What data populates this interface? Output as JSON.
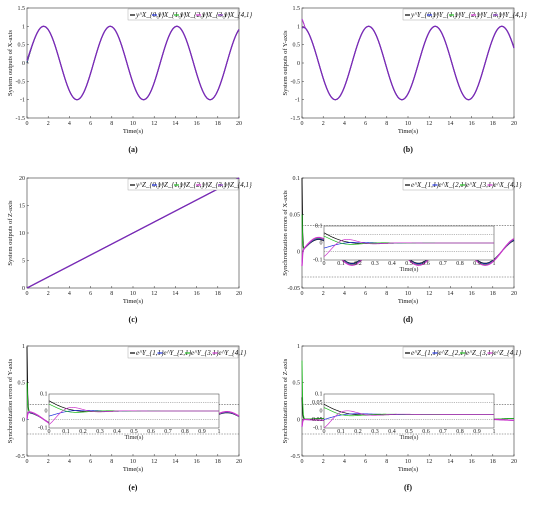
{
  "chart_data": [
    {
      "panel": "a",
      "caption": "(a)",
      "type": "line",
      "xlabel": "Time(s)",
      "ylabel": "System outputs of X-axis",
      "xlim": [
        0,
        20
      ],
      "ylim": [
        -1.5,
        1.5
      ],
      "xticks": [
        0,
        2,
        4,
        6,
        8,
        10,
        12,
        14,
        16,
        18,
        20
      ],
      "yticks": [
        -1.5,
        -1,
        -0.5,
        0,
        0.5,
        1,
        1.5
      ],
      "legend": [
        "y^X_{0,1}",
        "y^X_{1,1}",
        "y^X_{2,1}",
        "y^X_{3,1}",
        "y^X_{4,1}"
      ],
      "legend_position": "top-right",
      "series_colors": [
        "#000000",
        "#2233dd",
        "#22bb22",
        "#cc33cc",
        "#7a2ab8"
      ],
      "curve": {
        "kind": "sin",
        "amp": 1,
        "omega": 1,
        "phase": 0
      }
    },
    {
      "panel": "b",
      "caption": "(b)",
      "type": "line",
      "xlabel": "Time(s)",
      "ylabel": "System outputs of Y-axis",
      "xlim": [
        0,
        20
      ],
      "ylim": [
        -1.5,
        1.5
      ],
      "xticks": [
        0,
        2,
        4,
        6,
        8,
        10,
        12,
        14,
        16,
        18,
        20
      ],
      "yticks": [
        -1.5,
        -1,
        -0.5,
        0,
        0.5,
        1,
        1.5
      ],
      "legend": [
        "y^Y_{0,1}",
        "y^Y_{1,1}",
        "y^Y_{2,1}",
        "y^Y_{3,1}",
        "y^Y_{4,1}"
      ],
      "legend_position": "top-right",
      "series_colors": [
        "#000000",
        "#2233dd",
        "#22bb22",
        "#cc33cc",
        "#7a2ab8"
      ],
      "curve": {
        "kind": "cos",
        "amp": 1,
        "omega": 1,
        "phase": 0
      }
    },
    {
      "panel": "c",
      "caption": "(c)",
      "type": "line",
      "xlabel": "Time(s)",
      "ylabel": "System outputs of Z-axis",
      "xlim": [
        0,
        20
      ],
      "ylim": [
        0,
        20
      ],
      "xticks": [
        0,
        2,
        4,
        6,
        8,
        10,
        12,
        14,
        16,
        18,
        20
      ],
      "yticks": [
        0,
        5,
        10,
        15,
        20
      ],
      "legend": [
        "y^Z_{0,1}",
        "y^Z_{1,1}",
        "y^Z_{2,1}",
        "y^Z_{3,1}",
        "y^Z_{4,1}"
      ],
      "legend_position": "top-right",
      "series_colors": [
        "#000000",
        "#2233dd",
        "#22bb22",
        "#cc33cc",
        "#7a2ab8"
      ],
      "curve": {
        "kind": "linear",
        "slope": 1
      }
    },
    {
      "panel": "d",
      "caption": "(d)",
      "type": "line",
      "xlabel": "Time(s)",
      "ylabel": "Synchronization errors of X-axis",
      "xlim": [
        0,
        20
      ],
      "ylim": [
        -0.05,
        0.1
      ],
      "xticks": [
        0,
        2,
        4,
        6,
        8,
        10,
        12,
        14,
        16,
        18,
        20
      ],
      "yticks": [
        -0.05,
        0,
        0.05,
        0.1
      ],
      "legend": [
        "e^X_{1,1}",
        "e^X_{2,1}",
        "e^X_{3,1}",
        "e^X_{4,1}"
      ],
      "legend_position": "top-right",
      "series_colors": [
        "#000000",
        "#2233dd",
        "#22bb22",
        "#cc33cc"
      ],
      "bounds": [
        -0.035,
        0.035
      ],
      "curve": {
        "kind": "sinerr",
        "amp": 0.018
      },
      "inset": {
        "xlim": [
          0,
          1
        ],
        "ylim": [
          -0.1,
          0.1
        ],
        "xticks": [
          0,
          0.1,
          0.2,
          0.3,
          0.4,
          0.5,
          0.6,
          0.7,
          0.8,
          0.9,
          1
        ],
        "yticks": [
          -0.1,
          0,
          0.1
        ],
        "xlabel": "Time(s)"
      }
    },
    {
      "panel": "e",
      "caption": "(e)",
      "type": "line",
      "xlabel": "Time(s)",
      "ylabel": "Synchronization errors of Y-axis",
      "xlim": [
        0,
        20
      ],
      "ylim": [
        -0.5,
        1
      ],
      "xticks": [
        0,
        2,
        4,
        6,
        8,
        10,
        12,
        14,
        16,
        18,
        20
      ],
      "yticks": [
        -0.5,
        0,
        0.5,
        1
      ],
      "legend": [
        "e^Y_{1,1}",
        "e^Y_{2,1}",
        "e^Y_{3,1}",
        "e^Y_{4,1}"
      ],
      "legend_position": "top-right",
      "series_colors": [
        "#000000",
        "#2233dd",
        "#22bb22",
        "#cc33cc"
      ],
      "bounds": [
        -0.2,
        0.2
      ],
      "curve": {
        "kind": "coserr",
        "amp": 0.1
      },
      "inset": {
        "xlim": [
          0,
          1
        ],
        "ylim": [
          -0.1,
          0.1
        ],
        "xticks": [
          0,
          0.1,
          0.2,
          0.3,
          0.4,
          0.5,
          0.6,
          0.7,
          0.8,
          0.9,
          1
        ],
        "yticks": [
          -0.1,
          0,
          0.1
        ],
        "xlabel": "Time(s)"
      }
    },
    {
      "panel": "f",
      "caption": "(f)",
      "type": "line",
      "xlabel": "Time(s)",
      "ylabel": "Synchronization errors of Z-axis",
      "xlim": [
        0,
        20
      ],
      "ylim": [
        -0.5,
        1
      ],
      "xticks": [
        0,
        2,
        4,
        6,
        8,
        10,
        12,
        14,
        16,
        18,
        20
      ],
      "yticks": [
        -0.5,
        0,
        0.5,
        1
      ],
      "legend": [
        "e^Z_{1,1}",
        "e^Z_{2,1}",
        "e^Z_{3,1}",
        "e^Z_{4,1}"
      ],
      "legend_position": "top-right",
      "series_colors": [
        "#000000",
        "#2233dd",
        "#22bb22",
        "#cc33cc"
      ],
      "bounds": [
        -0.2,
        0.2
      ],
      "curve": {
        "kind": "flaterr",
        "amp": 0.04
      },
      "inset": {
        "xlim": [
          0,
          1
        ],
        "ylim": [
          -0.1,
          0.1
        ],
        "xticks": [
          0,
          0.1,
          0.2,
          0.3,
          0.4,
          0.5,
          0.6,
          0.7,
          0.8,
          0.9,
          1
        ],
        "yticks": [
          -0.1,
          -0.05,
          0,
          0.05,
          0.1
        ],
        "xlabel": "Time(s)"
      }
    }
  ]
}
